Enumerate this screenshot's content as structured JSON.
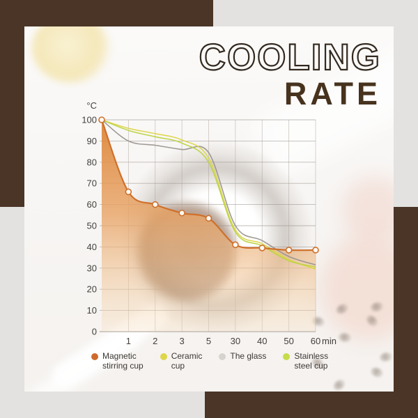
{
  "title": {
    "line1": "COOLING",
    "line2": "RATE"
  },
  "colors": {
    "frame_brown": "#4a3527",
    "background_gray": "#e3e2e0",
    "card_white": "#f8f6f4",
    "grid_line": "#97918b",
    "axis_text": "#43403c",
    "title_outline": "#33291f",
    "title_solid": "#47321e",
    "area_top": "rgba(220,132,55,0.95)",
    "area_mid": "rgba(232,163,100,0.8)",
    "area_bottom": "rgba(247,222,188,0.3)",
    "marker_fill": "#fdf8f1"
  },
  "chart_data": {
    "type": "area",
    "title": "COOLING RATE",
    "y_unit": "°C",
    "x_unit": "min",
    "ylim": [
      0,
      100
    ],
    "y_tick_step": 10,
    "grid": true,
    "legend_position": "bottom",
    "x_values_minutes": [
      0,
      1,
      2,
      3,
      5,
      30,
      40,
      50,
      60
    ],
    "x_tick_labels": [
      "1",
      "2",
      "3",
      "5",
      "30",
      "40",
      "50",
      "60"
    ],
    "series": [
      {
        "name": "Magnetic stirring cup",
        "style": "area+markers",
        "color": "#cf702b",
        "values": [
          100,
          66,
          60,
          56,
          53.5,
          41,
          39.5,
          38.5,
          38.5
        ]
      },
      {
        "name": "The glass",
        "style": "line",
        "color": "#9a958f",
        "values": [
          100,
          90,
          88,
          86,
          84.5,
          50,
          43,
          35.5,
          31.5
        ]
      },
      {
        "name": "Ceramic cup",
        "style": "line",
        "color": "#ddd64a",
        "values": [
          100,
          96,
          93.5,
          90.5,
          82,
          48,
          41.5,
          34,
          29.5
        ]
      },
      {
        "name": "Stainless steel cup",
        "style": "line",
        "color": "#bad340",
        "values": [
          100,
          95,
          92,
          89,
          80,
          47,
          40.5,
          33.5,
          30.5
        ]
      }
    ]
  },
  "legend": {
    "items": [
      {
        "label_lines": [
          "Magnetic",
          "stirring cup"
        ],
        "dot_color": "#cd6b2d"
      },
      {
        "label_lines": [
          "Ceramic",
          "cup"
        ],
        "dot_color": "#ded649"
      },
      {
        "label_lines": [
          "The glass"
        ],
        "dot_color": "#d6d3cf"
      },
      {
        "label_lines": [
          "Stainless",
          "steel cup"
        ],
        "dot_color": "#c6dc4a"
      }
    ]
  }
}
